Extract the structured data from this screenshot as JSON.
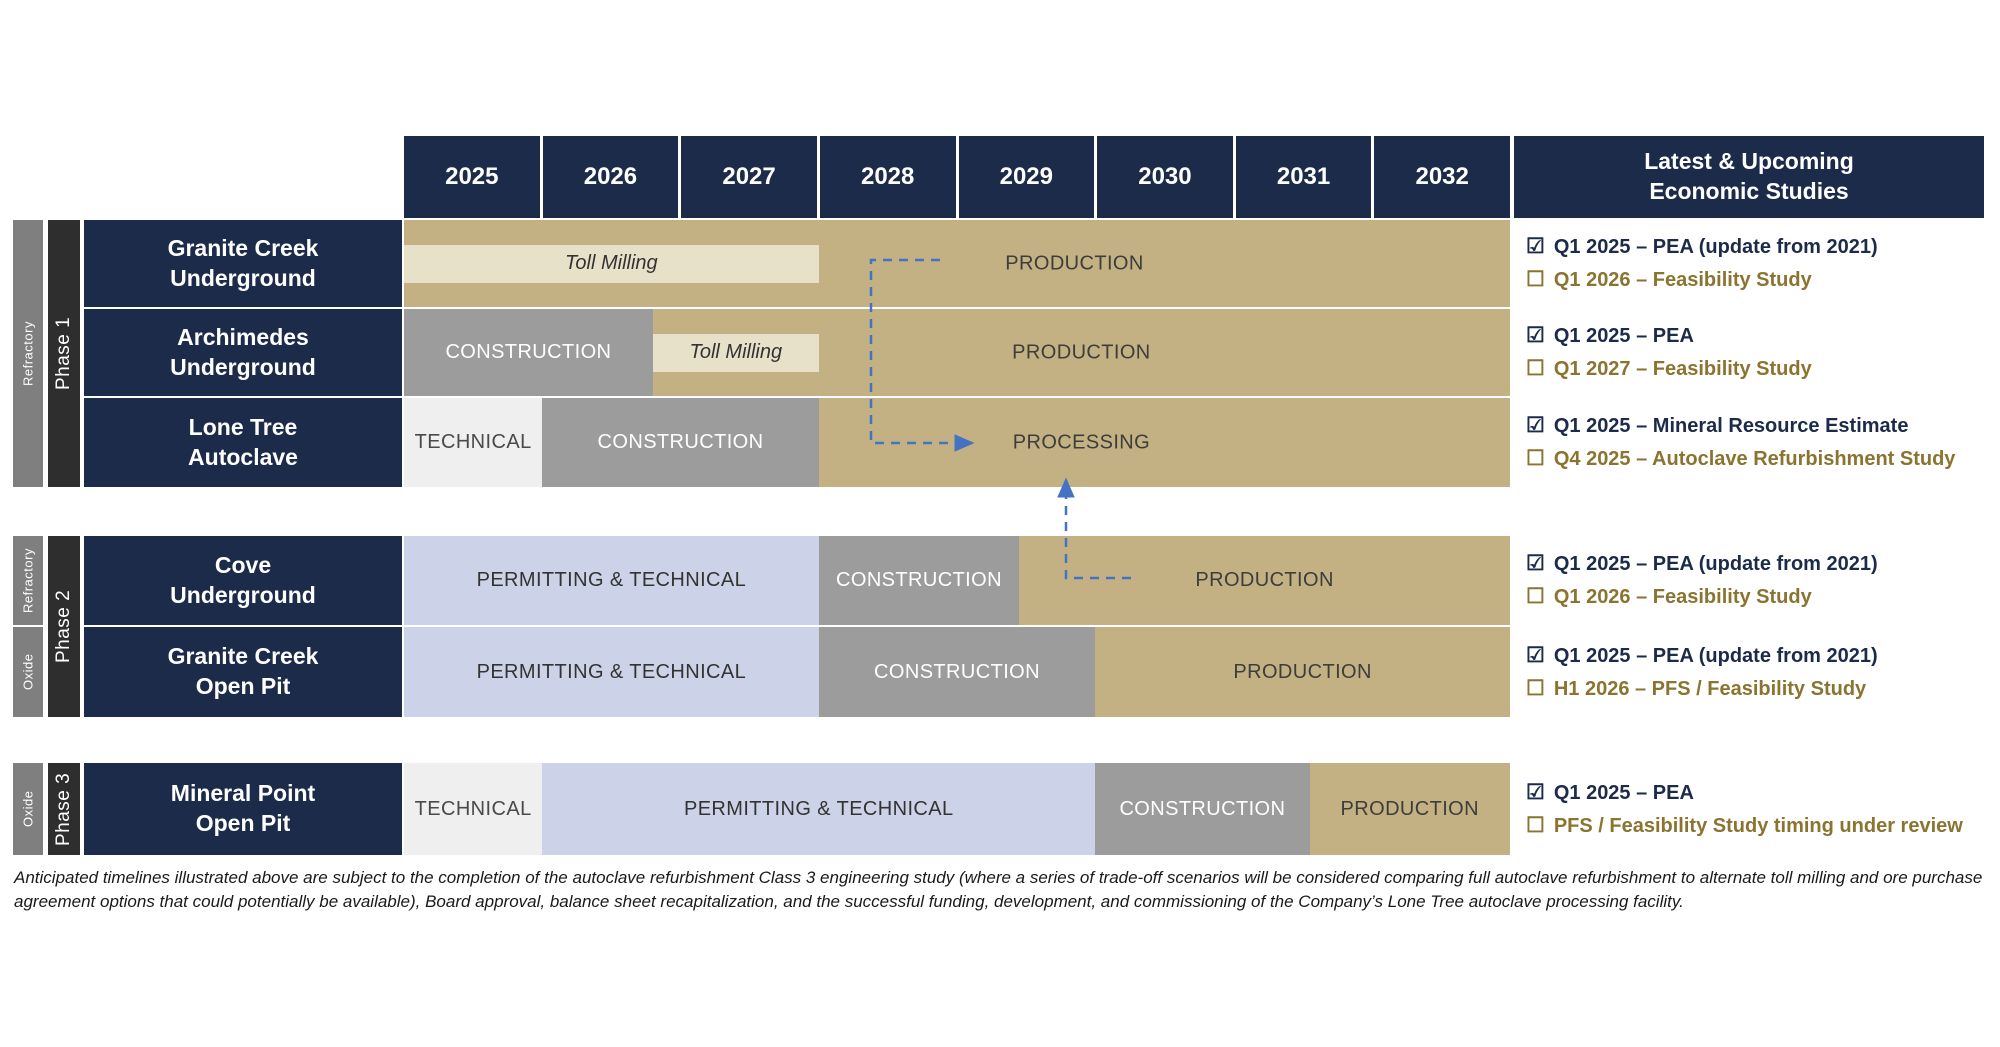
{
  "header": {
    "years": [
      "2025",
      "2026",
      "2027",
      "2028",
      "2029",
      "2030",
      "2031",
      "2032"
    ],
    "studies_title": [
      "Latest & Upcoming",
      "Economic Studies"
    ]
  },
  "phase_labels": {
    "p1": "Phase 1",
    "p1_ore": "Refractory",
    "p2": "Phase 2",
    "p2_ore_refractory": "Refractory",
    "p2_ore_oxide": "Oxide",
    "p3": "Phase 3",
    "p3_ore": "Oxide"
  },
  "icons": {
    "checked": "☑",
    "unchecked": "☐"
  },
  "colors": {
    "navy": "#1c2b4a",
    "production_tan": "#c3b183",
    "toll_milling_light": "#e8e1ca",
    "construction_gray": "#9c9c9c",
    "technical_light": "#efeff0",
    "permitting_lavender": "#ccd3e8",
    "ore_bar_gray": "#7f7f7f",
    "phase_bar_dark": "#2e2e2e",
    "pending_study_gold": "#8a7430",
    "completed_study_navy": "#1c2b4a",
    "arrow_blue": "#4472c4"
  },
  "chart_data": {
    "type": "gantt",
    "title": "",
    "x_range": [
      2025,
      2033
    ],
    "x_ticks": [
      "2025",
      "2026",
      "2027",
      "2028",
      "2029",
      "2030",
      "2031",
      "2032"
    ],
    "projects": [
      {
        "name": [
          "Granite Creek",
          "Underground"
        ],
        "phase": "Phase 1",
        "ore": "Refractory",
        "segments": [
          {
            "label": "PRODUCTION",
            "style": "production",
            "start": 2025,
            "end": 2033,
            "label_at": 2029.85
          },
          {
            "label": "Toll Milling",
            "style": "toll",
            "start": 2025,
            "end": 2028,
            "overlay": true
          }
        ],
        "studies": [
          {
            "done": true,
            "text": "Q1 2025 – PEA (update from 2021)"
          },
          {
            "done": false,
            "text": "Q1 2026 – Feasibility Study"
          }
        ]
      },
      {
        "name": [
          "Archimedes",
          "Underground"
        ],
        "phase": "Phase 1",
        "ore": "Refractory",
        "segments": [
          {
            "label": "CONSTRUCTION",
            "style": "construction",
            "start": 2025,
            "end": 2026.8
          },
          {
            "label": "PRODUCTION",
            "style": "production",
            "start": 2026.8,
            "end": 2033,
            "label_at": 2029.9
          },
          {
            "label": "Toll Milling",
            "style": "toll",
            "start": 2026.8,
            "end": 2028,
            "overlay": true
          }
        ],
        "studies": [
          {
            "done": true,
            "text": "Q1 2025 – PEA"
          },
          {
            "done": false,
            "text": "Q1 2027 – Feasibility Study"
          }
        ]
      },
      {
        "name": [
          "Lone Tree",
          "Autoclave"
        ],
        "phase": "Phase 1",
        "ore": "Refractory",
        "segments": [
          {
            "label": "TECHNICAL",
            "style": "technical",
            "start": 2025,
            "end": 2026
          },
          {
            "label": "CONSTRUCTION",
            "style": "construction",
            "start": 2026,
            "end": 2028
          },
          {
            "label": "PROCESSING",
            "style": "production",
            "start": 2028,
            "end": 2033,
            "label_at": 2029.9
          }
        ],
        "studies": [
          {
            "done": true,
            "text": "Q1 2025 – Mineral Resource Estimate"
          },
          {
            "done": false,
            "text": "Q4 2025 – Autoclave Refurbishment Study"
          }
        ]
      },
      {
        "name": [
          "Cove",
          "Underground"
        ],
        "phase": "Phase 2",
        "ore": "Refractory",
        "segments": [
          {
            "label": "PERMITTING & TECHNICAL",
            "style": "permitting",
            "start": 2025,
            "end": 2028
          },
          {
            "label": "CONSTRUCTION",
            "style": "construction",
            "start": 2028,
            "end": 2029.45
          },
          {
            "label": "PRODUCTION",
            "style": "production",
            "start": 2029.45,
            "end": 2033
          }
        ],
        "studies": [
          {
            "done": true,
            "text": "Q1 2025 – PEA (update from 2021)"
          },
          {
            "done": false,
            "text": "Q1 2026 – Feasibility Study"
          }
        ]
      },
      {
        "name": [
          "Granite Creek",
          "Open Pit"
        ],
        "phase": "Phase 2",
        "ore": "Oxide",
        "segments": [
          {
            "label": "PERMITTING & TECHNICAL",
            "style": "permitting",
            "start": 2025,
            "end": 2028
          },
          {
            "label": "CONSTRUCTION",
            "style": "construction",
            "start": 2028,
            "end": 2030
          },
          {
            "label": "PRODUCTION",
            "style": "production",
            "start": 2030,
            "end": 2033
          }
        ],
        "studies": [
          {
            "done": true,
            "text": "Q1 2025 – PEA (update from 2021)"
          },
          {
            "done": false,
            "text": "H1 2026 – PFS / Feasibility Study"
          }
        ]
      },
      {
        "name": [
          "Mineral Point",
          "Open Pit"
        ],
        "phase": "Phase 3",
        "ore": "Oxide",
        "segments": [
          {
            "label": "TECHNICAL",
            "style": "technical",
            "start": 2025,
            "end": 2026
          },
          {
            "label": "PERMITTING & TECHNICAL",
            "style": "permitting",
            "start": 2026,
            "end": 2030
          },
          {
            "label": "CONSTRUCTION",
            "style": "construction",
            "start": 2030,
            "end": 2031.55
          },
          {
            "label": "PRODUCTION",
            "style": "production",
            "start": 2031.55,
            "end": 2033
          }
        ],
        "studies": [
          {
            "done": true,
            "text": "Q1 2025 – PEA"
          },
          {
            "done": false,
            "text": "PFS / Feasibility Study timing under review"
          }
        ]
      }
    ],
    "annotations": [
      {
        "type": "dashed-arrow",
        "description": "Connector from Granite Creek / Archimedes toll milling (ending 2028) down into Lone Tree Autoclave PROCESSING bar"
      },
      {
        "type": "dashed-arrow",
        "description": "Connector from Cove Underground production start (~2029.5) up into Lone Tree Autoclave PROCESSING bar"
      }
    ]
  },
  "footnote": "Anticipated timelines illustrated above are subject to the completion of the autoclave refurbishment Class 3 engineering study (where a series of trade-off scenarios will be considered comparing full autoclave refurbishment to alternate toll milling and ore purchase agreement options that could potentially be available), Board approval, balance sheet recapitalization, and the successful funding, development, and commissioning of the Company’s Lone Tree autoclave processing facility."
}
